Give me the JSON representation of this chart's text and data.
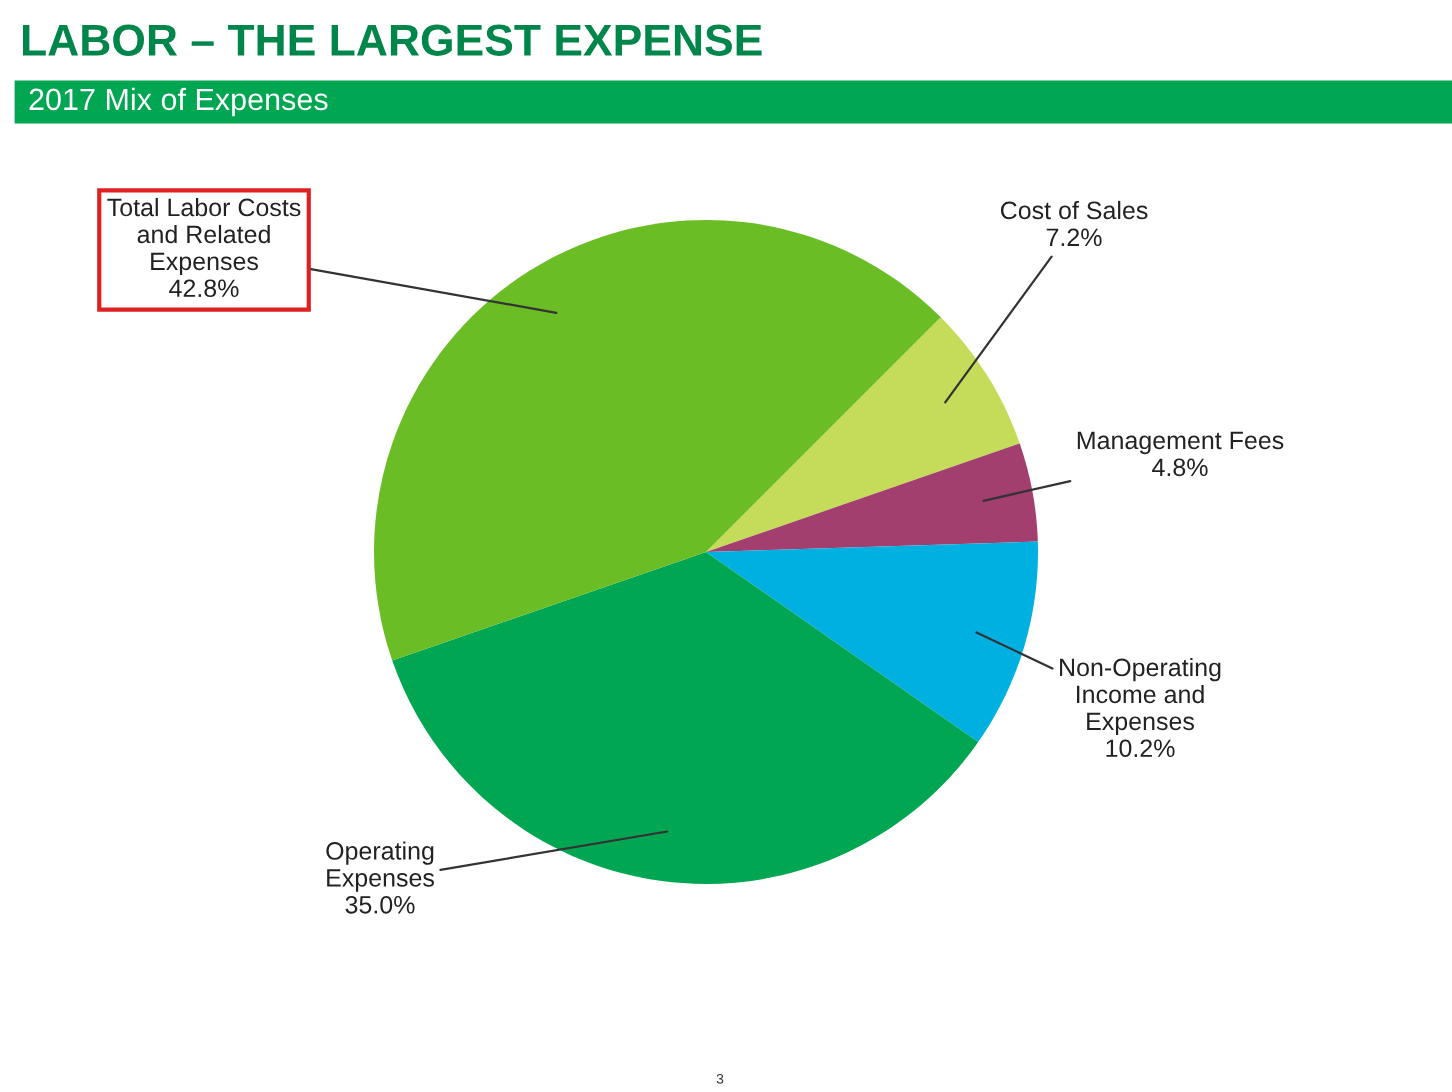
{
  "chart_data": {
    "type": "pie",
    "title": "LABOR – THE LARGEST EXPENSE",
    "subtitle": "2017 Mix of Expenses",
    "categories": [
      "Cost of Sales",
      "Management Fees",
      "Non-Operating\nIncome and\nExpenses",
      "Operating\nExpenses",
      "Total Labor Costs\nand Related\nExpenses"
    ],
    "values": [
      7.2,
      4.8,
      10.2,
      35.0,
      42.8
    ],
    "value_labels": [
      "7.2%",
      "4.8%",
      "10.2%",
      "35.0%",
      "42.8%"
    ],
    "colors": [
      "#c5dc5a",
      "#a23f6f",
      "#00b0e0",
      "#00a651",
      "#6abd25"
    ],
    "annotations": [
      "3"
    ]
  }
}
